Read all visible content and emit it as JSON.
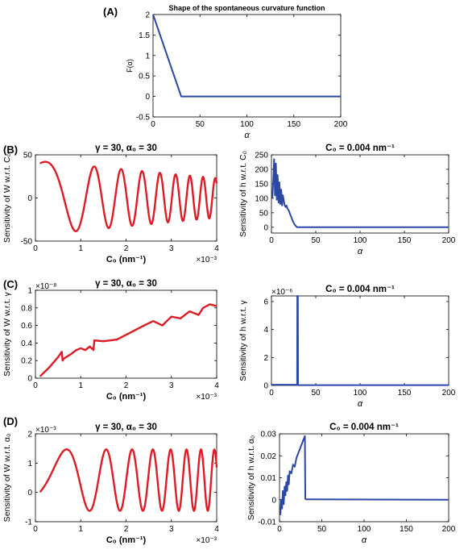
{
  "panel_labels": [
    "(A)",
    "(B)",
    "(C)",
    "(D)"
  ],
  "colors": {
    "red": "#e01b24",
    "blue": "#2b48a6",
    "axis": "#000000"
  },
  "chart_data": [
    {
      "id": "A",
      "type": "line",
      "title": "Shape of the spontaneous curvature function",
      "xlabel": "α",
      "ylabel": "F(α)",
      "xlim": [
        0,
        200
      ],
      "ylim": [
        -0.5,
        2
      ],
      "xticks": [
        0,
        50,
        100,
        150,
        200
      ],
      "yticks": [
        -0.5,
        0,
        0.5,
        1,
        1.5,
        2
      ],
      "ytick_labels": [
        "-0.5",
        "0",
        "0.5",
        "1",
        "1.5",
        "2"
      ],
      "series": [
        {
          "color": "blue",
          "x": [
            0,
            30,
            200
          ],
          "y": [
            2,
            0,
            0
          ]
        }
      ]
    },
    {
      "id": "B1",
      "type": "line",
      "title": "γ = 30, α₀ = 30",
      "xlabel": "C₀ (nm⁻¹)",
      "ylabel": "Sensitivity of W w.r.t. C₀",
      "x_multiplier": "×10⁻³",
      "xlim": [
        0,
        4
      ],
      "ylim": [
        -50,
        50
      ],
      "xticks": [
        0,
        1,
        2,
        3,
        4
      ],
      "yticks": [
        -50,
        0,
        50
      ],
      "series": [
        {
          "color": "red",
          "gen": "chirpB"
        }
      ]
    },
    {
      "id": "B2",
      "type": "line",
      "title": "C₀ = 0.004 nm⁻¹",
      "xlabel": "α",
      "ylabel": "Sensitivity of h w.r.t. C₀",
      "xlim": [
        0,
        200
      ],
      "ylim": [
        -20,
        250
      ],
      "xticks": [
        0,
        50,
        100,
        150,
        200
      ],
      "yticks": [
        0,
        50,
        100,
        150,
        200,
        250
      ],
      "series": [
        {
          "color": "blue",
          "x": [
            1,
            2,
            3,
            4,
            5,
            6,
            7,
            8,
            9,
            10,
            11,
            12,
            13,
            14,
            15,
            16,
            17,
            18,
            19,
            20,
            21,
            22,
            23,
            24,
            25,
            26,
            27,
            28,
            29,
            30,
            200
          ],
          "y": [
            100,
            160,
            235,
            110,
            220,
            95,
            180,
            85,
            155,
            80,
            130,
            75,
            110,
            90,
            75,
            70,
            75,
            65,
            60,
            55,
            45,
            38,
            30,
            22,
            16,
            10,
            6,
            3,
            0,
            0,
            0
          ]
        }
      ]
    },
    {
      "id": "C1",
      "type": "line",
      "title": "γ = 30, α₀ = 30",
      "xlabel": "C₀ (nm⁻¹)",
      "ylabel": "Sensitivity of W w.r.t. γ",
      "x_multiplier": "×10⁻³",
      "y_multiplier": "×10⁻⁸",
      "xlim": [
        0,
        4
      ],
      "ylim": [
        0,
        1
      ],
      "xticks": [
        0,
        1,
        2,
        3,
        4
      ],
      "yticks": [
        0,
        0.2,
        0.4,
        0.6,
        0.8,
        1
      ],
      "ytick_labels": [
        "0",
        "0.2",
        "0.4",
        "0.6",
        "0.8",
        "1"
      ],
      "series": [
        {
          "color": "red",
          "x": [
            0.1,
            0.3,
            0.5,
            0.58,
            0.6,
            0.62,
            0.8,
            0.9,
            1.0,
            1.1,
            1.2,
            1.28,
            1.3,
            1.5,
            1.8,
            2.1,
            2.4,
            2.6,
            2.8,
            3.0,
            3.2,
            3.4,
            3.6,
            3.7,
            3.85,
            4.0
          ],
          "y": [
            0.02,
            0.12,
            0.24,
            0.3,
            0.2,
            0.22,
            0.28,
            0.32,
            0.34,
            0.32,
            0.36,
            0.32,
            0.43,
            0.42,
            0.44,
            0.52,
            0.6,
            0.65,
            0.6,
            0.7,
            0.68,
            0.76,
            0.72,
            0.8,
            0.84,
            0.82
          ]
        }
      ]
    },
    {
      "id": "C2",
      "type": "line",
      "title": "C₀ = 0.004 nm⁻¹",
      "xlabel": "α",
      "ylabel": "Sensitivity of h w.r.t. γ",
      "y_multiplier": "×10⁻⁶",
      "xlim": [
        0,
        200
      ],
      "ylim": [
        0,
        6.4
      ],
      "xticks": [
        0,
        50,
        100,
        150,
        200
      ],
      "yticks": [
        0,
        2,
        4,
        6
      ],
      "series": [
        {
          "color": "blue",
          "x": [
            0,
            28,
            29,
            29.2,
            29.8,
            30,
            31,
            200
          ],
          "y": [
            0.05,
            0.05,
            0.05,
            6.4,
            6.4,
            0.05,
            0.02,
            0.02
          ]
        }
      ]
    },
    {
      "id": "D1",
      "type": "line",
      "title": "γ = 30, α₀ = 30",
      "xlabel": "C₀ (nm⁻¹)",
      "ylabel": "Sensitivity of W w.r.t. α₀",
      "x_multiplier": "×10⁻³",
      "y_multiplier": "×10⁻³",
      "xlim": [
        0,
        4
      ],
      "ylim": [
        -1,
        2
      ],
      "xticks": [
        0,
        1,
        2,
        3,
        4
      ],
      "yticks": [
        -1,
        0,
        1,
        2
      ],
      "series": [
        {
          "color": "red",
          "gen": "chirpD"
        }
      ]
    },
    {
      "id": "D2",
      "type": "line",
      "title": "C₀ = 0.004 nm⁻¹",
      "xlabel": "α",
      "ylabel": "Sensitivity of h w.r.t. α₀",
      "xlim": [
        0,
        200
      ],
      "ylim": [
        -0.01,
        0.03
      ],
      "xticks": [
        0,
        50,
        100,
        150,
        200
      ],
      "yticks": [
        -0.01,
        0,
        0.01,
        0.02,
        0.03
      ],
      "ytick_labels": [
        "-0.01",
        "0",
        "0.01",
        "0.02",
        "0.03"
      ],
      "series": [
        {
          "color": "blue",
          "x": [
            1,
            2,
            3,
            4,
            5,
            6,
            7,
            8,
            9,
            10,
            11,
            12,
            14,
            16,
            18,
            20,
            22,
            24,
            26,
            28,
            30,
            30.5,
            31,
            200
          ],
          "y": [
            -0.007,
            0.0,
            -0.004,
            0.004,
            -0.002,
            0.006,
            0.002,
            0.008,
            0.004,
            0.011,
            0.007,
            0.013,
            0.012,
            0.016,
            0.015,
            0.019,
            0.021,
            0.023,
            0.025,
            0.027,
            0.029,
            0.0005,
            0.0002,
            0.0
          ]
        }
      ]
    }
  ]
}
